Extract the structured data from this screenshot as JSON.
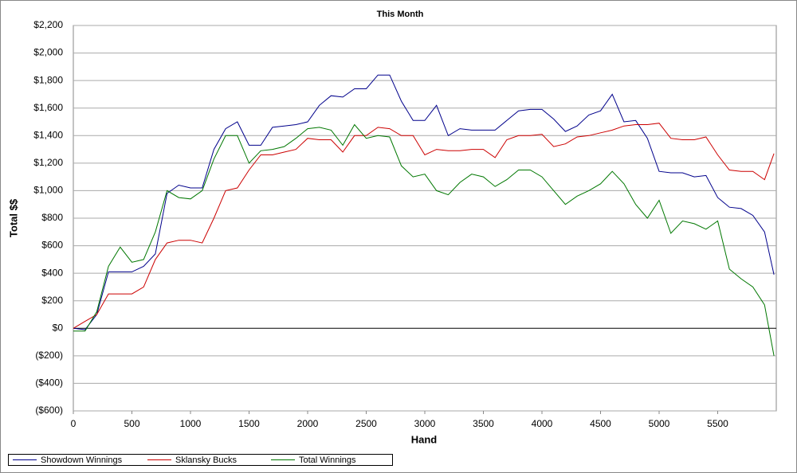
{
  "chart_data": {
    "type": "line",
    "title": "This Month",
    "x_label": "Hand",
    "y_label": "Total $$",
    "x": [
      0,
      100,
      200,
      300,
      400,
      500,
      600,
      700,
      800,
      900,
      1000,
      1100,
      1200,
      1300,
      1400,
      1500,
      1600,
      1700,
      1800,
      1900,
      2000,
      2100,
      2200,
      2300,
      2400,
      2500,
      2600,
      2700,
      2800,
      2900,
      3000,
      3100,
      3200,
      3300,
      3400,
      3500,
      3600,
      3700,
      3800,
      3900,
      4000,
      4100,
      4200,
      4300,
      4400,
      4500,
      4600,
      4700,
      4800,
      4900,
      5000,
      5100,
      5200,
      5300,
      5400,
      5500,
      5600,
      5700,
      5800,
      5900,
      5980
    ],
    "series": [
      {
        "name": "Showdown Winnings",
        "color": "#00008b",
        "values": [
          0,
          -10,
          100,
          410,
          410,
          410,
          450,
          540,
          980,
          1040,
          1020,
          1020,
          1300,
          1450,
          1500,
          1330,
          1330,
          1460,
          1470,
          1480,
          1500,
          1620,
          1690,
          1680,
          1740,
          1740,
          1840,
          1840,
          1650,
          1510,
          1510,
          1620,
          1400,
          1450,
          1440,
          1440,
          1440,
          1510,
          1580,
          1590,
          1590,
          1520,
          1430,
          1470,
          1550,
          1580,
          1700,
          1500,
          1510,
          1380,
          1140,
          1130,
          1130,
          1100,
          1110,
          950,
          880,
          870,
          820,
          700,
          390
        ]
      },
      {
        "name": "Sklansky Bucks",
        "color": "#cc0000",
        "values": [
          0,
          50,
          100,
          250,
          250,
          250,
          300,
          500,
          620,
          640,
          640,
          620,
          800,
          1000,
          1020,
          1150,
          1260,
          1260,
          1280,
          1300,
          1380,
          1370,
          1370,
          1280,
          1400,
          1400,
          1460,
          1450,
          1400,
          1400,
          1260,
          1300,
          1290,
          1290,
          1300,
          1300,
          1240,
          1370,
          1400,
          1400,
          1410,
          1320,
          1340,
          1390,
          1400,
          1420,
          1440,
          1470,
          1480,
          1480,
          1490,
          1380,
          1370,
          1370,
          1390,
          1260,
          1150,
          1140,
          1140,
          1080,
          1270
        ]
      },
      {
        "name": "Total Winnings",
        "color": "#007700",
        "values": [
          -20,
          -20,
          120,
          450,
          590,
          480,
          500,
          700,
          1000,
          950,
          940,
          1000,
          1230,
          1400,
          1400,
          1200,
          1290,
          1300,
          1320,
          1380,
          1450,
          1460,
          1440,
          1330,
          1480,
          1380,
          1400,
          1390,
          1180,
          1100,
          1120,
          1000,
          970,
          1060,
          1120,
          1100,
          1030,
          1080,
          1150,
          1150,
          1100,
          1000,
          900,
          960,
          1000,
          1050,
          1140,
          1050,
          900,
          800,
          930,
          690,
          780,
          760,
          720,
          780,
          430,
          360,
          300,
          170,
          -200
        ]
      }
    ],
    "xlim": [
      0,
      6000
    ],
    "xticks": [
      0,
      500,
      1000,
      1500,
      2000,
      2500,
      3000,
      3500,
      4000,
      4500,
      5000,
      5500
    ],
    "ylim": [
      -600,
      2200
    ],
    "yticks": [
      {
        "value": -600,
        "label": "($600)"
      },
      {
        "value": -400,
        "label": "($400)"
      },
      {
        "value": -200,
        "label": "($200)"
      },
      {
        "value": 0,
        "label": "$0"
      },
      {
        "value": 200,
        "label": "$200"
      },
      {
        "value": 400,
        "label": "$400"
      },
      {
        "value": 600,
        "label": "$600"
      },
      {
        "value": 800,
        "label": "$800"
      },
      {
        "value": 1000,
        "label": "$1,000"
      },
      {
        "value": 1200,
        "label": "$1,200"
      },
      {
        "value": 1400,
        "label": "$1,400"
      },
      {
        "value": 1600,
        "label": "$1,600"
      },
      {
        "value": 1800,
        "label": "$1,800"
      },
      {
        "value": 2000,
        "label": "$2,000"
      },
      {
        "value": 2200,
        "label": "$2,200"
      }
    ],
    "grid": true
  }
}
